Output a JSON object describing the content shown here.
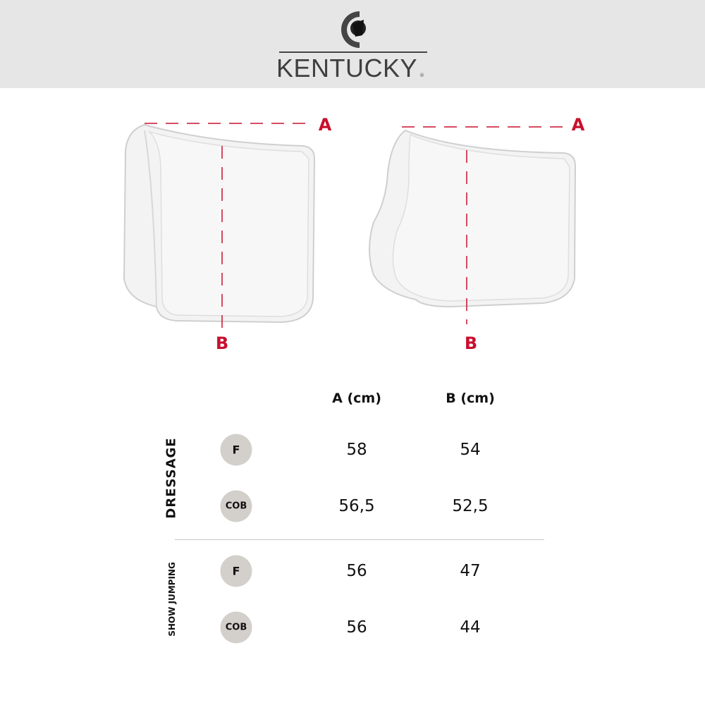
{
  "brand": {
    "logo_text": "KENTUCKY",
    "registered": "®"
  },
  "colors": {
    "measure_line": "#c8102e",
    "badge": "#d3d0cc",
    "header_bg": "#e6e6e6"
  },
  "diagrams": [
    {
      "name": "dressage",
      "label_a": "A",
      "label_b": "B"
    },
    {
      "name": "show-jumping",
      "label_a": "A",
      "label_b": "B"
    }
  ],
  "table": {
    "columns": [
      "A (cm)",
      "B (cm)"
    ],
    "groups": [
      {
        "label": "DRESSAGE",
        "rows": [
          {
            "size": "F",
            "a": "58",
            "b": "54"
          },
          {
            "size": "COB",
            "a": "56,5",
            "b": "52,5"
          }
        ]
      },
      {
        "label": "SHOW JUMPING",
        "rows": [
          {
            "size": "F",
            "a": "56",
            "b": "47"
          },
          {
            "size": "COB",
            "a": "56",
            "b": "44"
          }
        ]
      }
    ]
  }
}
